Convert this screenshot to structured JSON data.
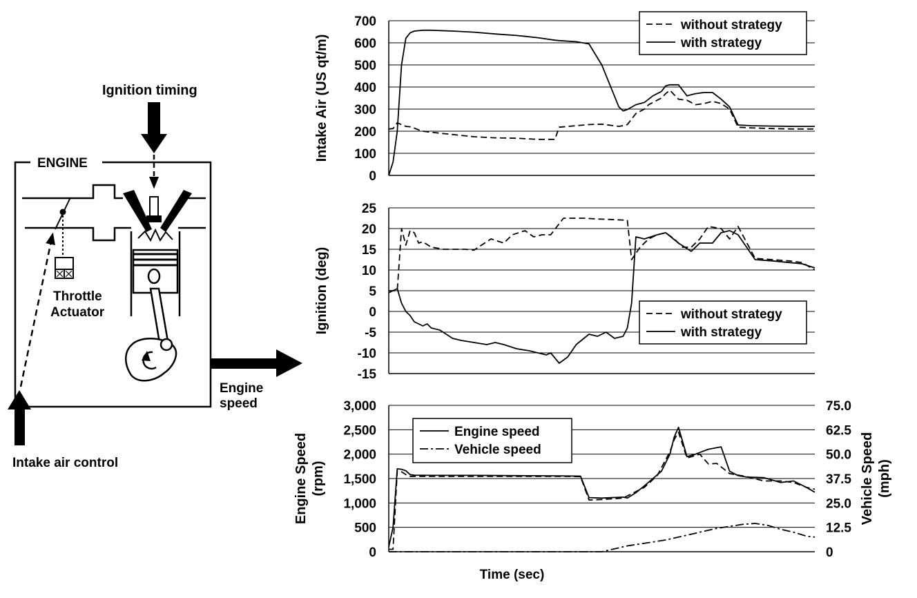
{
  "diagram": {
    "ignition_label": "Ignition timing",
    "engine_label": "ENGINE",
    "throttle_line1": "Throttle",
    "throttle_line2": "Actuator",
    "speed_line1": "Engine",
    "speed_line2": "speed",
    "intake_label": "Intake air control"
  },
  "chart_data": [
    {
      "type": "line",
      "title": "",
      "xlabel": "",
      "ylabel": "Intake Air (US qt/m)",
      "ylim": [
        0,
        700
      ],
      "yticks": [
        "0",
        "100",
        "200",
        "300",
        "400",
        "500",
        "600",
        "700"
      ],
      "grid": true,
      "legend": "top-right",
      "x": [
        0,
        1,
        2,
        3,
        4,
        5,
        6,
        7,
        8,
        10,
        15,
        20,
        25,
        30,
        35,
        39,
        40,
        44,
        47,
        50,
        54,
        55,
        56,
        58,
        60,
        61,
        62,
        64,
        65,
        66,
        68,
        70,
        72,
        74,
        76,
        78,
        80,
        82,
        85,
        90,
        95,
        100
      ],
      "series": [
        {
          "name": "without strategy",
          "style": "dashed",
          "values": [
            210,
            212,
            238,
            230,
            222,
            220,
            214,
            206,
            200,
            195,
            185,
            175,
            170,
            168,
            163,
            163,
            218,
            225,
            230,
            232,
            222,
            225,
            230,
            280,
            300,
            320,
            330,
            350,
            370,
            385,
            345,
            340,
            320,
            325,
            335,
            325,
            300,
            218,
            215,
            212,
            210,
            210
          ]
        },
        {
          "name": "with strategy",
          "style": "solid",
          "values": [
            0,
            60,
            200,
            500,
            620,
            645,
            653,
            655,
            657,
            657,
            653,
            648,
            640,
            633,
            623,
            612,
            610,
            605,
            595,
            500,
            310,
            292,
            298,
            320,
            330,
            345,
            360,
            380,
            405,
            410,
            410,
            360,
            370,
            375,
            375,
            345,
            310,
            228,
            225,
            223,
            222,
            222
          ]
        }
      ]
    },
    {
      "type": "line",
      "title": "",
      "xlabel": "",
      "ylabel": "Ignition (deg)",
      "ylim": [
        -15,
        25
      ],
      "yticks": [
        "-15",
        "-10",
        "-5",
        "0",
        "5",
        "10",
        "15",
        "20",
        "25"
      ],
      "grid": true,
      "legend": "center-right",
      "series": [
        {
          "name": "without strategy",
          "style": "dashed",
          "x": [
            0,
            2,
            3,
            4,
            5,
            6,
            7,
            8,
            10,
            13,
            18,
            20,
            24,
            27,
            29,
            32,
            34,
            36,
            38,
            41,
            46,
            49,
            52,
            56,
            57,
            59,
            61,
            63,
            65,
            67,
            69,
            71,
            73,
            75,
            78,
            80,
            82,
            86,
            90,
            94,
            97,
            100
          ],
          "values": [
            5,
            5,
            20,
            16,
            19.5,
            19,
            16.5,
            16.8,
            15.5,
            15,
            15,
            14.8,
            17.5,
            16.5,
            18.5,
            19.5,
            18,
            18.5,
            18.5,
            22.5,
            22.5,
            22.3,
            22.2,
            22,
            12.5,
            15.5,
            17.5,
            18.5,
            19,
            17.5,
            15.5,
            15.5,
            17.5,
            20.5,
            20,
            17.5,
            20.5,
            12.8,
            12.5,
            12.2,
            11.8,
            10
          ]
        },
        {
          "name": "with strategy",
          "style": "solid",
          "x": [
            0,
            2,
            3,
            4,
            5,
            6,
            8,
            9,
            10,
            12,
            15,
            17,
            20,
            23,
            25,
            27,
            30,
            33,
            35,
            37,
            38,
            40,
            42,
            44,
            47,
            49,
            51,
            53,
            55,
            56,
            57,
            58,
            60,
            63,
            65,
            68,
            71,
            73,
            76,
            78,
            80,
            82,
            86,
            90,
            94,
            97,
            100
          ],
          "values": [
            4.5,
            5.5,
            2,
            0,
            -1,
            -2.5,
            -3.5,
            -3,
            -4,
            -4.5,
            -6.5,
            -7,
            -7.5,
            -8,
            -7.5,
            -8,
            -9,
            -9.5,
            -10,
            -10.5,
            -10,
            -12.5,
            -11,
            -8,
            -5.5,
            -6,
            -5,
            -6.5,
            -6,
            -4,
            2,
            18,
            17.5,
            18.5,
            19,
            16.5,
            14.5,
            16.5,
            16.5,
            19,
            19.5,
            18.5,
            12.5,
            12.2,
            11.8,
            11.5,
            10.5
          ]
        }
      ]
    },
    {
      "type": "line",
      "title": "",
      "xlabel": "Time (sec)",
      "ylabel": "Engine Speed (rpm)",
      "ylabel_lines": [
        "Engine Speed",
        "(rpm)"
      ],
      "y2label": "Vehicle Speed (mph)",
      "y2label_lines": [
        "Vehicle Speed",
        "(mph)"
      ],
      "ylim": [
        0,
        3000
      ],
      "yticks": [
        "0",
        "500",
        "1,000",
        "1,500",
        "2,000",
        "2,500",
        "3,000"
      ],
      "y2lim": [
        0,
        75
      ],
      "y2ticks": [
        "0",
        "12.5",
        "25.0",
        "37.5",
        "50.0",
        "62.5",
        "75.0"
      ],
      "grid": true,
      "legend": "top-left",
      "series": [
        {
          "name": "Engine speed",
          "style": "solid",
          "x": [
            0,
            1,
            2,
            3,
            4,
            5,
            6,
            10,
            20,
            30,
            40,
            45,
            47,
            50,
            55,
            56,
            58,
            60,
            62,
            64,
            66,
            67,
            68,
            70,
            72,
            75,
            78,
            80,
            82,
            84,
            88,
            92,
            95,
            98,
            100
          ],
          "values": [
            100,
            500,
            1700,
            1690,
            1660,
            1580,
            1570,
            1565,
            1565,
            1560,
            1555,
            1550,
            1110,
            1100,
            1120,
            1100,
            1210,
            1350,
            1500,
            1650,
            2000,
            2350,
            2550,
            1950,
            2000,
            2100,
            2150,
            1650,
            1560,
            1530,
            1520,
            1420,
            1450,
            1320,
            1220
          ]
        },
        {
          "name": "Vehicle speed",
          "style": "dashdot",
          "x": [
            0,
            50,
            53,
            56,
            59,
            62,
            65,
            68,
            71,
            74,
            77,
            80,
            83,
            86,
            89,
            92,
            95,
            98,
            100
          ],
          "values": [
            0,
            0,
            1.5,
            3,
            4,
            5,
            6,
            7.5,
            9,
            10.5,
            12,
            13,
            14,
            14.5,
            13.5,
            11.5,
            10,
            8,
            7.5
          ],
          "axis": "right"
        },
        {
          "name": "",
          "style": "dashed",
          "x": [
            0,
            1,
            2,
            3,
            4,
            5,
            10,
            20,
            30,
            40,
            45,
            47,
            50,
            55,
            60,
            63,
            66,
            67,
            68,
            70,
            73,
            75,
            77,
            80,
            84,
            88,
            92,
            95,
            98,
            100
          ],
          "values": [
            50,
            50,
            1660,
            1640,
            1580,
            1545,
            1545,
            1545,
            1545,
            1545,
            1540,
            1060,
            1070,
            1100,
            1320,
            1560,
            2050,
            2300,
            2450,
            1920,
            2000,
            1800,
            1810,
            1600,
            1540,
            1450,
            1450,
            1420,
            1320,
            1280
          ]
        }
      ]
    }
  ]
}
